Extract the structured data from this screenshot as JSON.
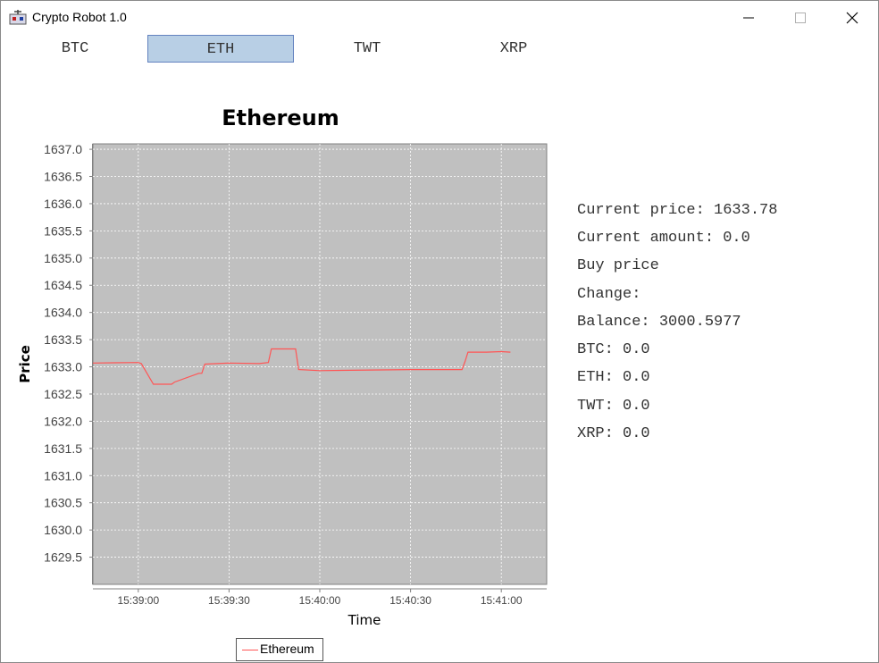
{
  "window": {
    "title": "Crypto Robot 1.0",
    "icon": "robot-app-icon"
  },
  "tabs": [
    {
      "label": "BTC",
      "active": false
    },
    {
      "label": "ETH",
      "active": true
    },
    {
      "label": "TWT",
      "active": false
    },
    {
      "label": "XRP",
      "active": false
    }
  ],
  "info": {
    "current_price": "Current price: 1633.78",
    "current_amount": "Current amount: 0.0",
    "buy_price": "Buy price",
    "change": "Change:",
    "balance": "Balance: 3000.5977",
    "btc": "BTC: 0.0",
    "eth": "ETH: 0.0",
    "twt": "TWT: 0.0",
    "xrp": "XRP: 0.0"
  },
  "colors": {
    "plot_background": "#c0c0c0",
    "series_line": "#ff5555",
    "active_tab": "#b8cfe5",
    "active_tab_border": "#6382bf"
  },
  "chart_data": {
    "type": "line",
    "title": "Ethereum",
    "xlabel": "Time",
    "ylabel": "Price",
    "ylim": [
      1629.0,
      1637.1
    ],
    "xlim_seconds": [
      0,
      150
    ],
    "y_ticks": [
      "1629.5",
      "1630.0",
      "1630.5",
      "1631.0",
      "1631.5",
      "1632.0",
      "1632.5",
      "1633.0",
      "1633.5",
      "1634.0",
      "1634.5",
      "1635.0",
      "1635.5",
      "1636.0",
      "1636.5",
      "1637.0"
    ],
    "x_ticks": [
      {
        "label": "15:39:00",
        "t": 15
      },
      {
        "label": "15:39:30",
        "t": 45
      },
      {
        "label": "15:40:00",
        "t": 75
      },
      {
        "label": "15:40:30",
        "t": 105
      },
      {
        "label": "15:41:00",
        "t": 135
      }
    ],
    "grid": true,
    "legend": "bottom",
    "series": [
      {
        "name": "Ethereum",
        "x_time": [
          "15:38:45",
          "15:39:00",
          "15:39:01",
          "15:39:05",
          "15:39:10",
          "15:39:11",
          "15:39:12",
          "15:39:20",
          "15:39:21",
          "15:39:22",
          "15:39:30",
          "15:39:40",
          "15:39:43",
          "15:39:44",
          "15:39:50",
          "15:39:52",
          "15:39:53",
          "15:40:00",
          "15:40:30",
          "15:40:47",
          "15:40:48",
          "15:40:49",
          "15:40:55",
          "15:41:00",
          "15:41:03"
        ],
        "values": [
          1633.07,
          1633.08,
          1633.06,
          1632.68,
          1632.68,
          1632.68,
          1632.72,
          1632.88,
          1632.88,
          1633.05,
          1633.07,
          1633.06,
          1633.08,
          1633.33,
          1633.33,
          1633.33,
          1632.95,
          1632.93,
          1632.95,
          1632.95,
          1633.1,
          1633.27,
          1633.27,
          1633.28,
          1633.27
        ]
      }
    ]
  },
  "legend": {
    "label": "Ethereum"
  }
}
